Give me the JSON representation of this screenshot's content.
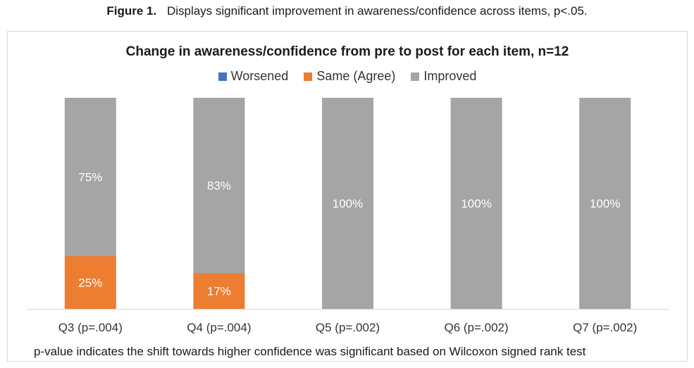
{
  "caption": {
    "label": "Figure 1.",
    "text": "Displays significant improvement in awareness/confidence across items, p<.05."
  },
  "footnote": "p-value indicates the shift towards higher confidence was significant based on Wilcoxon signed rank test",
  "chart_data": {
    "type": "bar",
    "stacked": true,
    "title": "Change in awareness/confidence from pre to post for each item, n=12",
    "categories": [
      "Q3 (p=.004)",
      "Q4 (p=.004)",
      "Q5 (p=.002)",
      "Q6 (p=.002)",
      "Q7 (p=.002)"
    ],
    "series": [
      {
        "name": "Worsened",
        "color": "#4472c4",
        "values": [
          0,
          0,
          0,
          0,
          0
        ],
        "labels": [
          "",
          "",
          "",
          "",
          ""
        ]
      },
      {
        "name": "Same (Agree)",
        "color": "#ed7d31",
        "values": [
          25,
          17,
          0,
          0,
          0
        ],
        "labels": [
          "25%",
          "17%",
          "",
          "",
          ""
        ]
      },
      {
        "name": "Improved",
        "color": "#a5a5a5",
        "values": [
          75,
          83,
          100,
          100,
          100
        ],
        "labels": [
          "75%",
          "83%",
          "100%",
          "100%",
          "100%"
        ]
      }
    ],
    "ylim": [
      0,
      100
    ],
    "legend_position": "top",
    "grid": false
  }
}
